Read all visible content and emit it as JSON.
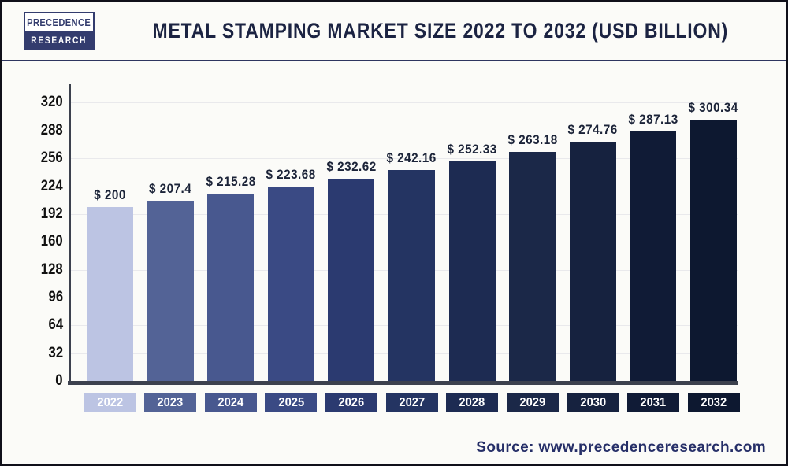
{
  "header": {
    "logo": {
      "line1": "PRECEDENCE",
      "line2": "RESEARCH"
    },
    "title": "METAL STAMPING MARKET SIZE 2022 TO 2032 (USD BILLION)"
  },
  "chart_data": {
    "type": "bar",
    "title": "METAL STAMPING MARKET SIZE 2022 TO 2032 (USD BILLION)",
    "categories": [
      "2022",
      "2023",
      "2024",
      "2025",
      "2026",
      "2027",
      "2028",
      "2029",
      "2030",
      "2031",
      "2032"
    ],
    "values": [
      200,
      207.4,
      215.28,
      223.68,
      232.62,
      242.16,
      252.33,
      263.18,
      274.76,
      287.13,
      300.34
    ],
    "value_labels": [
      "$ 200",
      "$ 207.4",
      "$ 215.28",
      "$ 223.68",
      "$ 232.62",
      "$ 242.16",
      "$ 252.33",
      "$ 263.18",
      "$ 274.76",
      "$ 287.13",
      "$ 300.34"
    ],
    "unit": "USD Billion",
    "xlabel": "",
    "ylabel": "",
    "ylim": [
      0,
      320
    ],
    "yticks": [
      0,
      32,
      64,
      96,
      128,
      160,
      192,
      224,
      256,
      288,
      320
    ],
    "grid": "horizontal",
    "legend": "none",
    "bar_colors": [
      "#bcc4e3",
      "#536396",
      "#48588f",
      "#3a4a84",
      "#2b3a70",
      "#243462",
      "#1d2b52",
      "#1b2848",
      "#16223f",
      "#101b36",
      "#0d1830"
    ]
  },
  "colors": {
    "title_text": "#1b2342",
    "axis": "#3c414e",
    "gridline": "#e9e9ec",
    "value_label_text": "#1b2338",
    "ytick_text": "#111111",
    "xtick_text": "#ffffff",
    "source_text": "#262f68",
    "logo_navy": "#333c6e",
    "background": "#fbfbf8"
  },
  "source": {
    "text": "Source: www.precedenceresearch.com"
  }
}
